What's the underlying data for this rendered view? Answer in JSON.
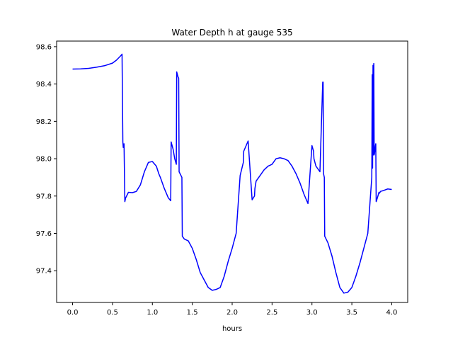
{
  "chart_data": {
    "type": "line",
    "title": "Water Depth h at gauge 535",
    "xlabel": "hours",
    "ylabel": "",
    "xlim": [
      -0.2,
      4.2
    ],
    "ylim": [
      97.23,
      98.63
    ],
    "xticks": [
      {
        "value": 0.0,
        "label": "0.0"
      },
      {
        "value": 0.5,
        "label": "0.5"
      },
      {
        "value": 1.0,
        "label": "1.0"
      },
      {
        "value": 1.5,
        "label": "1.5"
      },
      {
        "value": 2.0,
        "label": "2.0"
      },
      {
        "value": 2.5,
        "label": "2.5"
      },
      {
        "value": 3.0,
        "label": "3.0"
      },
      {
        "value": 3.5,
        "label": "3.5"
      },
      {
        "value": 4.0,
        "label": "4.0"
      }
    ],
    "yticks": [
      {
        "value": 97.4,
        "label": "97.4"
      },
      {
        "value": 97.6,
        "label": "97.6"
      },
      {
        "value": 97.8,
        "label": "97.8"
      },
      {
        "value": 98.0,
        "label": "98.0"
      },
      {
        "value": 98.2,
        "label": "98.2"
      },
      {
        "value": 98.4,
        "label": "98.4"
      },
      {
        "value": 98.6,
        "label": "98.6"
      }
    ],
    "grid": false,
    "series": [
      {
        "color": "#0000ff",
        "x": [
          0.0,
          0.1,
          0.2,
          0.3,
          0.4,
          0.5,
          0.55,
          0.6,
          0.62,
          0.63,
          0.635,
          0.645,
          0.655,
          0.665,
          0.7,
          0.75,
          0.8,
          0.85,
          0.9,
          0.95,
          1.0,
          1.05,
          1.08,
          1.1,
          1.15,
          1.2,
          1.23,
          1.235,
          1.26,
          1.28,
          1.3,
          1.305,
          1.32,
          1.33,
          1.335,
          1.37,
          1.375,
          1.4,
          1.45,
          1.5,
          1.55,
          1.6,
          1.65,
          1.7,
          1.75,
          1.8,
          1.85,
          1.9,
          1.95,
          2.0,
          2.05,
          2.1,
          2.14,
          2.145,
          2.2,
          2.25,
          2.28,
          2.285,
          2.3,
          2.35,
          2.4,
          2.45,
          2.5,
          2.55,
          2.6,
          2.65,
          2.7,
          2.75,
          2.8,
          2.85,
          2.9,
          2.95,
          3.0,
          3.02,
          3.025,
          3.05,
          3.1,
          3.135,
          3.14,
          3.145,
          3.155,
          3.16,
          3.2,
          3.25,
          3.3,
          3.35,
          3.4,
          3.45,
          3.5,
          3.55,
          3.6,
          3.65,
          3.7,
          3.75,
          3.755,
          3.76,
          3.765,
          3.77,
          3.775,
          3.78,
          3.785,
          3.79,
          3.795,
          3.8,
          3.805,
          3.82,
          3.84,
          3.845,
          3.86,
          3.9,
          3.95,
          4.0
        ],
        "y": [
          98.48,
          98.481,
          98.484,
          98.49,
          98.498,
          98.512,
          98.528,
          98.55,
          98.56,
          98.09,
          98.06,
          98.08,
          97.77,
          97.79,
          97.82,
          97.818,
          97.825,
          97.86,
          97.93,
          97.98,
          97.985,
          97.96,
          97.92,
          97.9,
          97.84,
          97.79,
          97.775,
          98.09,
          98.05,
          98.0,
          97.97,
          98.465,
          98.44,
          98.43,
          97.93,
          97.9,
          97.585,
          97.57,
          97.56,
          97.52,
          97.46,
          97.39,
          97.35,
          97.31,
          97.295,
          97.3,
          97.31,
          97.37,
          97.45,
          97.52,
          97.6,
          97.91,
          97.98,
          98.04,
          98.095,
          97.78,
          97.8,
          97.84,
          97.88,
          97.91,
          97.94,
          97.96,
          97.97,
          98.0,
          98.005,
          98.0,
          97.99,
          97.96,
          97.92,
          97.87,
          97.81,
          97.76,
          98.07,
          98.04,
          98.0,
          97.96,
          97.93,
          98.41,
          98.41,
          97.92,
          97.9,
          97.585,
          97.55,
          97.48,
          97.39,
          97.31,
          97.28,
          97.285,
          97.31,
          97.37,
          97.44,
          97.52,
          97.6,
          97.9,
          98.45,
          97.95,
          98.5,
          98.02,
          98.51,
          98.02,
          98.03,
          98.05,
          98.07,
          98.08,
          97.77,
          97.79,
          97.82,
          97.815,
          97.825,
          97.83,
          97.838,
          97.835
        ]
      }
    ]
  }
}
